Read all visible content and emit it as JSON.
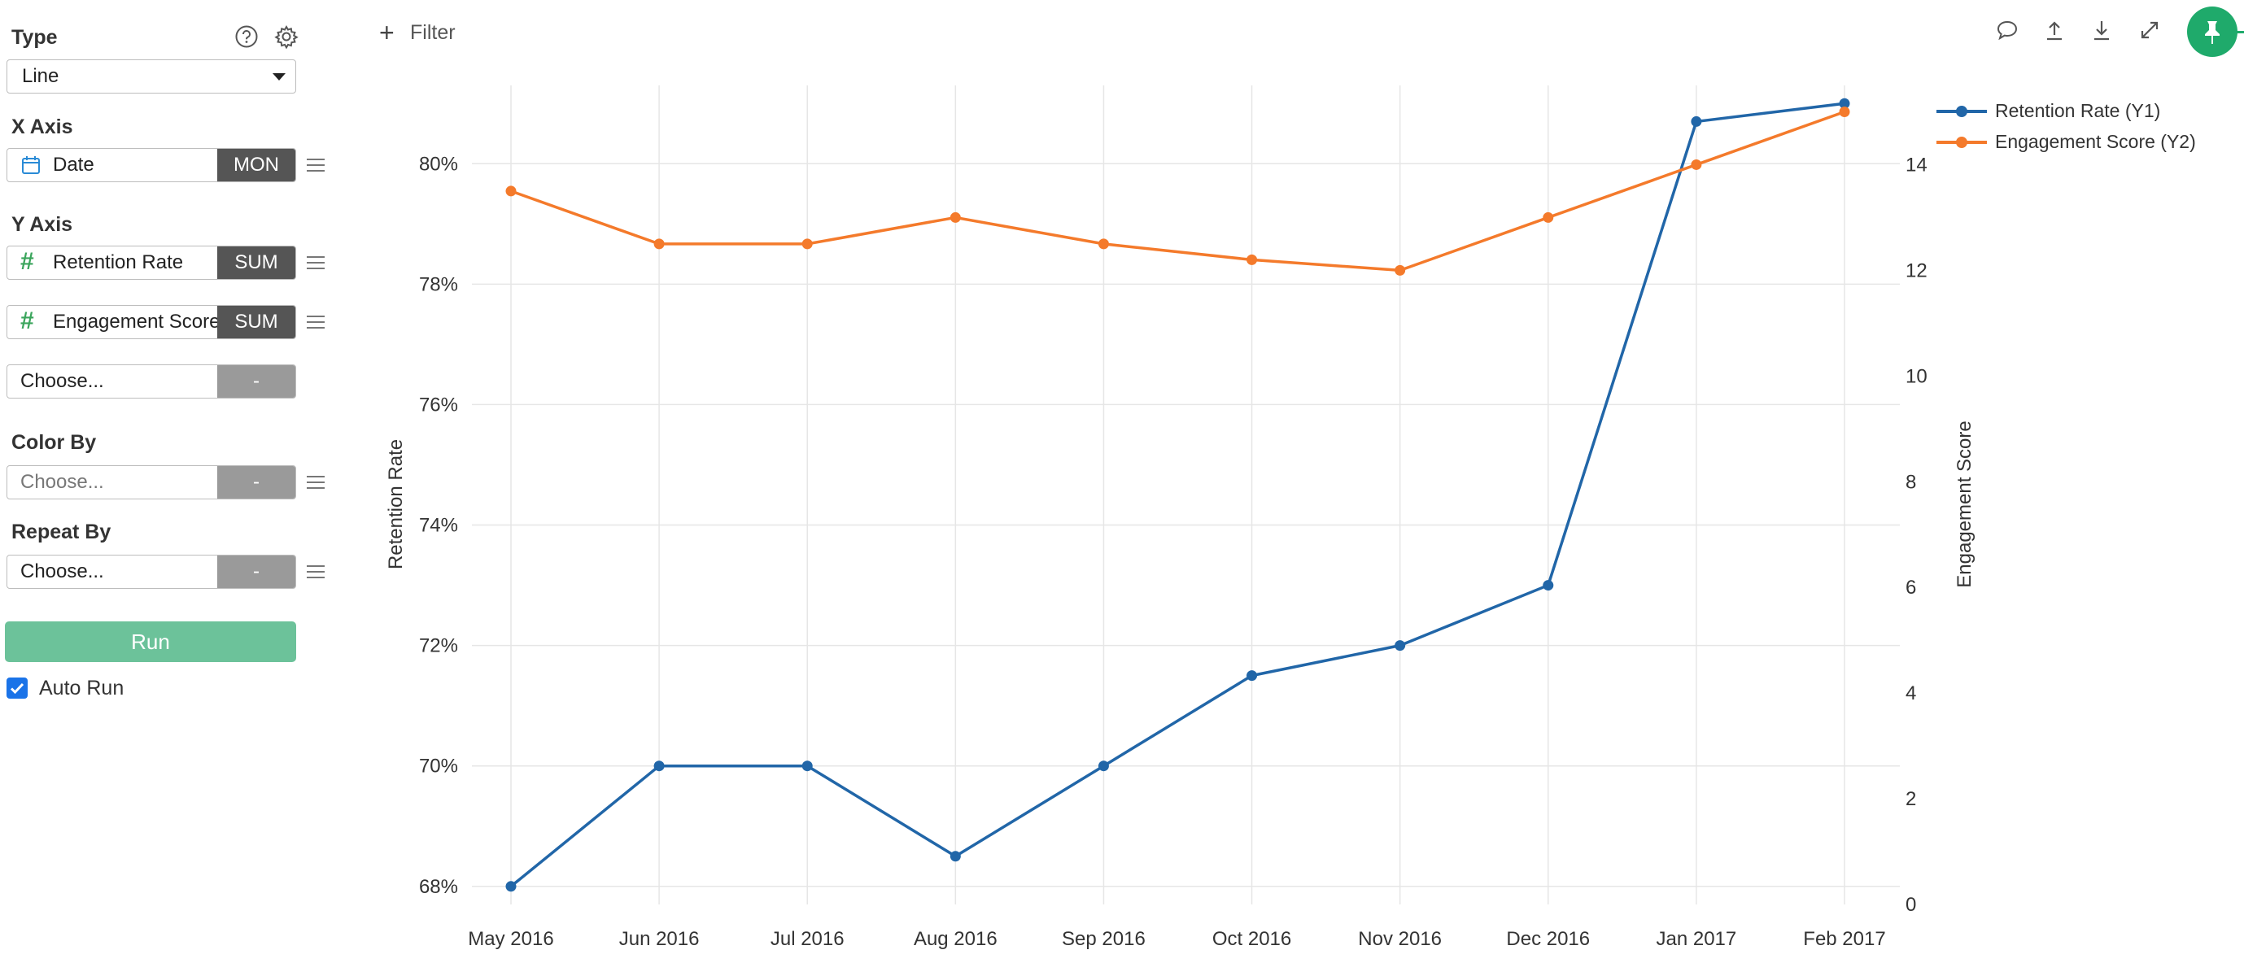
{
  "panel": {
    "type_label": "Type",
    "type_value": "Line",
    "x_axis_label": "X Axis",
    "x_field": {
      "name": "Date",
      "agg": "MON"
    },
    "y_axis_label": "Y Axis",
    "y_fields": [
      {
        "name": "Retention Rate",
        "agg": "SUM"
      },
      {
        "name": "Engagement Score",
        "agg": "SUM"
      }
    ],
    "y_choose": {
      "placeholder": "Choose...",
      "agg": "-"
    },
    "color_by_label": "Color By",
    "color_by": {
      "placeholder": "Choose...",
      "agg": "-"
    },
    "repeat_by_label": "Repeat By",
    "repeat_by": {
      "placeholder": "Choose...",
      "agg": "-"
    },
    "run_label": "Run",
    "auto_run_label": "Auto Run",
    "auto_run_checked": true
  },
  "topbar": {
    "filter_label": "Filter",
    "icons": [
      "comment-icon",
      "upload-icon",
      "download-icon",
      "expand-icon",
      "pin-icon"
    ]
  },
  "colors": {
    "series1": "#2166a8",
    "series2": "#f47a2b",
    "run": "#6cc29a",
    "pin": "#1faa6b"
  },
  "chart_data": {
    "type": "line",
    "categories": [
      "May 2016",
      "Jun 2016",
      "Jul 2016",
      "Aug 2016",
      "Sep 2016",
      "Oct 2016",
      "Nov 2016",
      "Dec 2016",
      "Jan 2017",
      "Feb 2017"
    ],
    "series": [
      {
        "name": "Retention Rate (Y1)",
        "axis": "y1",
        "values": [
          68.0,
          70.0,
          70.0,
          68.5,
          70.0,
          71.5,
          72.0,
          73.0,
          80.7,
          81.0
        ]
      },
      {
        "name": "Engagement Score (Y2)",
        "axis": "y2",
        "values": [
          13.5,
          12.5,
          12.5,
          13.0,
          12.5,
          12.2,
          12.0,
          13.0,
          14.0,
          15.0
        ]
      }
    ],
    "ylabel": "Retention Rate",
    "y2label": "Engagement Score",
    "ylim": [
      67.7,
      81.3
    ],
    "y_ticks": [
      68,
      70,
      72,
      74,
      76,
      78,
      80
    ],
    "y_tick_labels": [
      "68%",
      "70%",
      "72%",
      "74%",
      "76%",
      "78%",
      "80%"
    ],
    "y2lim": [
      0,
      15.5
    ],
    "y2_ticks": [
      0,
      2,
      4,
      6,
      8,
      10,
      12,
      14
    ],
    "y2_tick_labels": [
      "0",
      "2",
      "4",
      "6",
      "8",
      "10",
      "12",
      "14"
    ],
    "grid": true,
    "legend_position": "top-right"
  }
}
